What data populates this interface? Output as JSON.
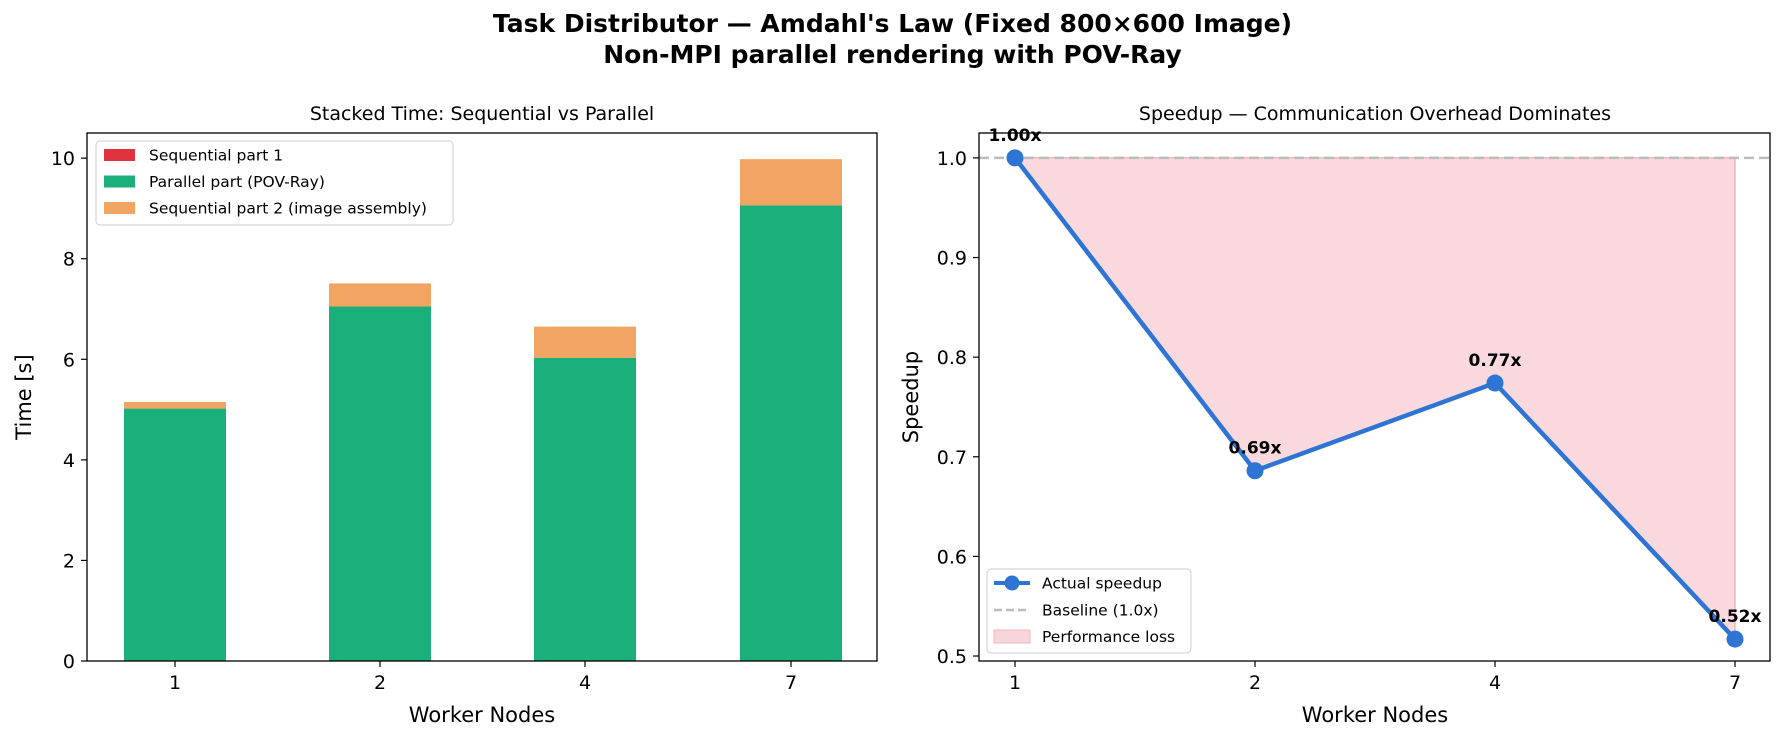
{
  "title": {
    "line1": "Task Distributor — Amdahl's Law (Fixed 800×600 Image)",
    "line2": "Non-MPI parallel rendering with POV-Ray"
  },
  "colors": {
    "sequential1": "#e03340",
    "parallel": "#1bb07a",
    "sequential2": "#f2a462",
    "speedup_line": "#2e74d4",
    "baseline": "#bbbbbb",
    "loss_fill": "#f8d5da"
  },
  "chart_data": [
    {
      "type": "bar",
      "stacked": true,
      "title": "Stacked Time: Sequential vs Parallel",
      "xlabel": "Worker Nodes",
      "ylabel": "Time [s]",
      "categories": [
        "1",
        "2",
        "4",
        "7"
      ],
      "series": [
        {
          "name": "Sequential part 1",
          "values": [
            0.0,
            0.0,
            0.0,
            0.0
          ]
        },
        {
          "name": "Parallel part (POV-Ray)",
          "values": [
            5.02,
            7.05,
            6.03,
            9.06
          ]
        },
        {
          "name": "Sequential part 2 (image assembly)",
          "values": [
            0.13,
            0.46,
            0.62,
            0.92
          ]
        }
      ],
      "ylim": [
        0,
        10.5
      ],
      "yticks": [
        "0",
        "2",
        "4",
        "6",
        "8",
        "10"
      ],
      "legend": "top-left",
      "grid": false
    },
    {
      "type": "line",
      "title": "Speedup — Communication Overhead Dominates",
      "xlabel": "Worker Nodes",
      "ylabel": "Speedup",
      "categories": [
        "1",
        "2",
        "4",
        "7"
      ],
      "series": [
        {
          "name": "Actual speedup",
          "values": [
            1.0,
            0.686,
            0.774,
            0.517
          ]
        },
        {
          "name": "Baseline (1.0x)",
          "values": [
            1.0,
            1.0,
            1.0,
            1.0
          ]
        }
      ],
      "data_labels": [
        "1.00x",
        "0.69x",
        "0.77x",
        "0.52x"
      ],
      "fill_label": "Performance loss",
      "ylim": [
        0.495,
        1.025
      ],
      "yticks": [
        "0.5",
        "0.6",
        "0.7",
        "0.8",
        "0.9",
        "1.0"
      ],
      "legend": "bottom-left",
      "grid": false
    }
  ]
}
